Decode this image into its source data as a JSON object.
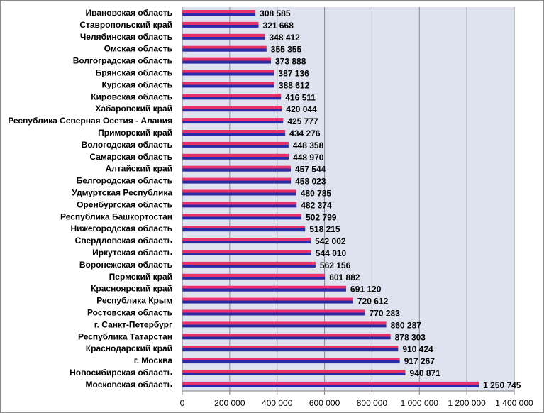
{
  "chart_data": {
    "type": "bar",
    "orientation": "horizontal",
    "title": "",
    "xlabel": "",
    "ylabel": "",
    "xlim": [
      0,
      1400000
    ],
    "x_ticks": [
      0,
      200000,
      400000,
      600000,
      800000,
      1000000,
      1200000,
      1400000
    ],
    "x_tick_labels": [
      "0",
      "200 000",
      "400 000",
      "600 000",
      "800 000",
      "1 000 000",
      "1 200 000",
      "1 400 000"
    ],
    "grid": "vertical",
    "plot_background": "#dfe3f0",
    "bar_color_top": "#e8306a",
    "bar_color_bottom": "#2a2aa8",
    "categories": [
      "Ивановская область",
      "Ставропольский край",
      "Челябинская область",
      "Омская область",
      "Волгоградская область",
      "Брянская область",
      "Курская область",
      "Кировская область",
      "Хабаровский край",
      "Республика Северная Осетия - Алания",
      "Приморский край",
      "Вологодская область",
      "Самарская область",
      "Алтайский край",
      "Белгородская область",
      "Удмуртская Республика",
      "Оренбургская область",
      "Республика Башкортостан",
      "Нижегородская область",
      "Свердловская область",
      "Иркутская область",
      "Воронежская область",
      "Пермский край",
      "Красноярский край",
      "Республика Крым",
      "Ростовская область",
      "г. Санкт-Петербург",
      "Республика Татарстан",
      "Краснодарский край",
      "г. Москва",
      "Новосибирская область",
      "Московская область"
    ],
    "values": [
      308585,
      321668,
      348412,
      355355,
      373888,
      387136,
      388612,
      416511,
      420044,
      425777,
      434276,
      448358,
      448970,
      457544,
      458023,
      480785,
      482374,
      502799,
      518215,
      542002,
      544010,
      562156,
      601882,
      691120,
      720612,
      770283,
      860287,
      878303,
      910424,
      917267,
      940871,
      1250745
    ],
    "value_labels": [
      "308 585",
      "321 668",
      "348 412",
      "355 355",
      "373 888",
      "387 136",
      "388 612",
      "416 511",
      "420 044",
      "425 777",
      "434 276",
      "448 358",
      "448 970",
      "457 544",
      "458 023",
      "480 785",
      "482 374",
      "502 799",
      "518 215",
      "542 002",
      "544 010",
      "562 156",
      "601 882",
      "691 120",
      "720 612",
      "770 283",
      "860 287",
      "878 303",
      "910 424",
      "917 267",
      "940 871",
      "1 250 745"
    ]
  }
}
